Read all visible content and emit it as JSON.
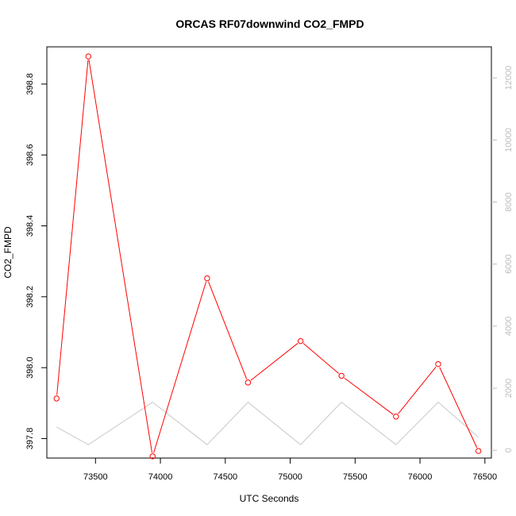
{
  "chart_data": {
    "type": "line",
    "title": "ORCAS RF07downwind CO2_FMPD",
    "xlabel": "UTC Seconds",
    "ylabel": "CO2_FMPD",
    "xlim": [
      73125,
      76550
    ],
    "ylim": [
      397.745,
      398.905
    ],
    "y2lim": [
      -250,
      13000
    ],
    "x_ticks": [
      73500,
      74000,
      74500,
      75000,
      75500,
      76000,
      76500
    ],
    "y_ticks": [
      397.8,
      398.0,
      398.2,
      398.4,
      398.6,
      398.8
    ],
    "y_tick_labels": [
      "397.8",
      "398.0",
      "398.2",
      "398.4",
      "398.6",
      "398.8"
    ],
    "y2_ticks": [
      0,
      2000,
      4000,
      6000,
      8000,
      10000,
      12000
    ],
    "grid": false,
    "series": [
      {
        "axis": "left",
        "color": "#ff0000",
        "marker": "open-circle",
        "x": [
          73200,
          73445,
          73940,
          74360,
          74675,
          75080,
          75395,
          75815,
          76140,
          76450
        ],
        "y": [
          397.913,
          398.878,
          397.75,
          398.252,
          397.958,
          398.075,
          397.977,
          397.862,
          398.01,
          397.765
        ]
      },
      {
        "axis": "right",
        "color": "#c8c8c8",
        "marker": "none",
        "x": [
          73200,
          73445,
          73940,
          74360,
          74675,
          75080,
          75395,
          75815,
          76140,
          76450
        ],
        "y": [
          750,
          180,
          1550,
          180,
          1550,
          180,
          1550,
          180,
          1550,
          420
        ]
      }
    ]
  }
}
